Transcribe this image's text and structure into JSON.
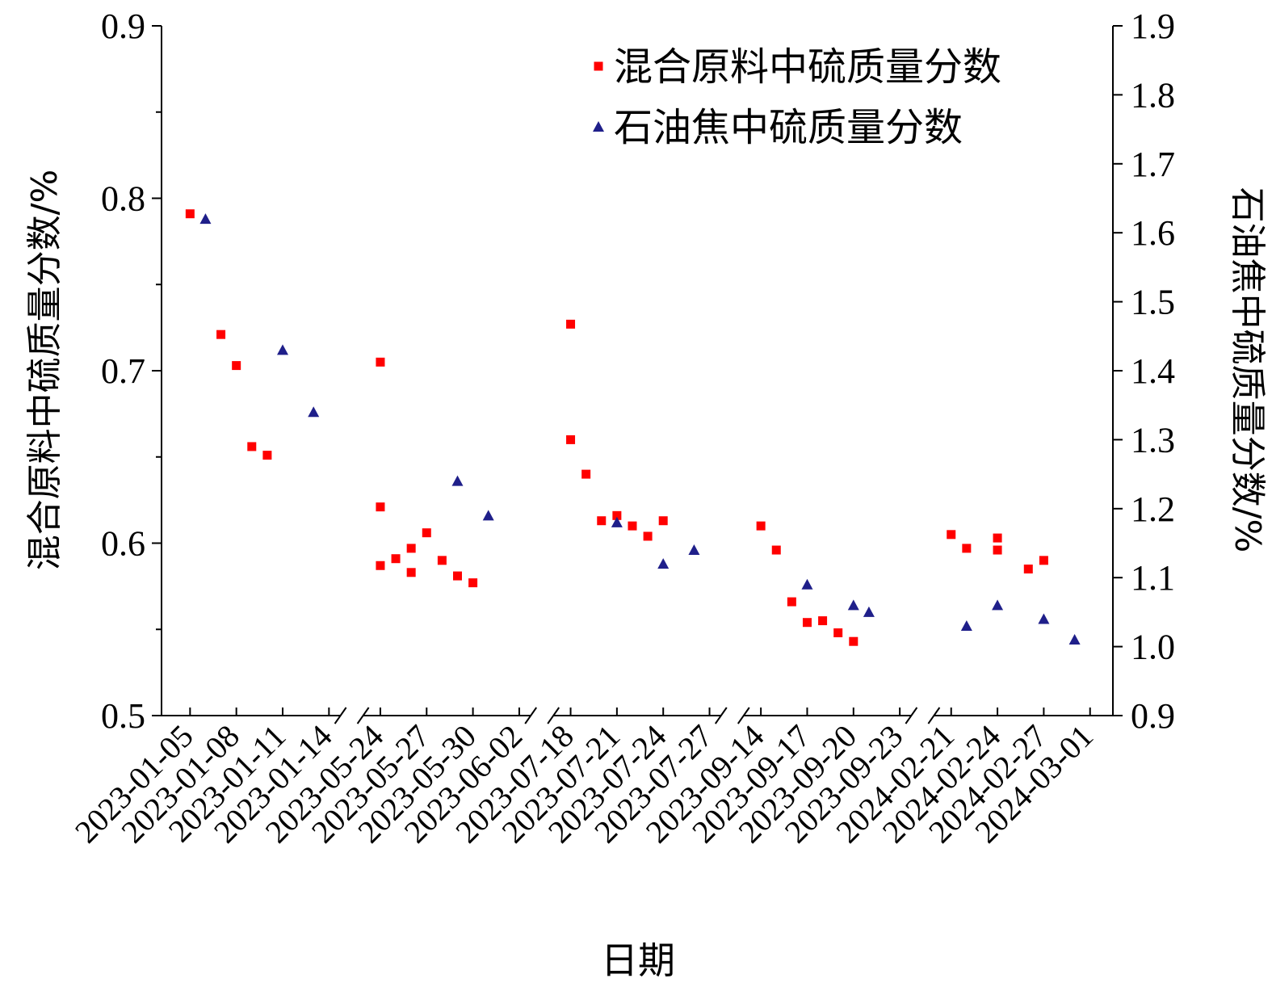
{
  "chart_data": {
    "type": "scatter",
    "title": "",
    "xlabel": "日期",
    "ylabel_left": "混合原料中硫质量分数/%",
    "ylabel_right": "石油焦中硫质量分数/%",
    "ylim_left": [
      0.5,
      0.9
    ],
    "ylim_right": [
      0.9,
      1.9
    ],
    "yticks_left": [
      "0.5",
      "0.6",
      "0.7",
      "0.8",
      "0.9"
    ],
    "yticks_right": [
      "0.9",
      "1.0",
      "1.1",
      "1.2",
      "1.3",
      "1.4",
      "1.5",
      "1.6",
      "1.7",
      "1.8",
      "1.9"
    ],
    "x_segments": [
      {
        "start": "2023-01-05",
        "end": "2023-01-14",
        "ticks": [
          "2023-01-05",
          "2023-01-08",
          "2023-01-11",
          "2023-01-14"
        ]
      },
      {
        "start": "2023-05-24",
        "end": "2023-06-02",
        "ticks": [
          "2023-05-24",
          "2023-05-27",
          "2023-05-30",
          "2023-06-02"
        ]
      },
      {
        "start": "2023-07-18",
        "end": "2023-07-27",
        "ticks": [
          "2023-07-18",
          "2023-07-21",
          "2023-07-24",
          "2023-07-27"
        ]
      },
      {
        "start": "2023-09-14",
        "end": "2023-09-23",
        "ticks": [
          "2023-09-14",
          "2023-09-17",
          "2023-09-20",
          "2023-09-23"
        ]
      },
      {
        "start": "2024-02-21",
        "end": "2024-03-01",
        "ticks": [
          "2024-02-21",
          "2024-02-24",
          "2024-02-27",
          "2024-03-01"
        ]
      }
    ],
    "axis_breaks": true,
    "legend_position": "top-right",
    "series": [
      {
        "name": "混合原料中硫质量分数",
        "axis": "left",
        "marker": "square",
        "color": "#ff0000",
        "points": [
          {
            "x": "2023-01-05",
            "y": 0.791
          },
          {
            "x": "2023-01-07",
            "y": 0.721
          },
          {
            "x": "2023-01-08",
            "y": 0.703
          },
          {
            "x": "2023-01-09",
            "y": 0.656
          },
          {
            "x": "2023-01-10",
            "y": 0.651
          },
          {
            "x": "2023-05-24",
            "y": 0.705
          },
          {
            "x": "2023-05-24",
            "y": 0.621
          },
          {
            "x": "2023-05-24",
            "y": 0.587
          },
          {
            "x": "2023-05-25",
            "y": 0.591
          },
          {
            "x": "2023-05-26",
            "y": 0.597
          },
          {
            "x": "2023-05-26",
            "y": 0.583
          },
          {
            "x": "2023-05-27",
            "y": 0.606
          },
          {
            "x": "2023-05-28",
            "y": 0.59
          },
          {
            "x": "2023-05-29",
            "y": 0.581
          },
          {
            "x": "2023-05-30",
            "y": 0.577
          },
          {
            "x": "2023-07-18",
            "y": 0.727
          },
          {
            "x": "2023-07-18",
            "y": 0.66
          },
          {
            "x": "2023-07-19",
            "y": 0.64
          },
          {
            "x": "2023-07-20",
            "y": 0.613
          },
          {
            "x": "2023-07-21",
            "y": 0.616
          },
          {
            "x": "2023-07-22",
            "y": 0.61
          },
          {
            "x": "2023-07-23",
            "y": 0.604
          },
          {
            "x": "2023-07-24",
            "y": 0.613
          },
          {
            "x": "2023-09-14",
            "y": 0.61
          },
          {
            "x": "2023-09-15",
            "y": 0.596
          },
          {
            "x": "2023-09-16",
            "y": 0.566
          },
          {
            "x": "2023-09-17",
            "y": 0.554
          },
          {
            "x": "2023-09-18",
            "y": 0.555
          },
          {
            "x": "2023-09-19",
            "y": 0.548
          },
          {
            "x": "2023-09-20",
            "y": 0.543
          },
          {
            "x": "2024-02-21",
            "y": 0.605
          },
          {
            "x": "2024-02-22",
            "y": 0.597
          },
          {
            "x": "2024-02-24",
            "y": 0.603
          },
          {
            "x": "2024-02-24",
            "y": 0.596
          },
          {
            "x": "2024-02-26",
            "y": 0.585
          },
          {
            "x": "2024-02-27",
            "y": 0.59
          }
        ]
      },
      {
        "name": "石油焦中硫质量分数",
        "axis": "right",
        "marker": "triangle",
        "color": "#1f1f8a",
        "points": [
          {
            "x": "2023-01-06",
            "y": 1.62
          },
          {
            "x": "2023-01-11",
            "y": 1.43
          },
          {
            "x": "2023-01-13",
            "y": 1.34
          },
          {
            "x": "2023-05-29",
            "y": 1.24
          },
          {
            "x": "2023-05-31",
            "y": 1.19
          },
          {
            "x": "2023-07-21",
            "y": 1.18
          },
          {
            "x": "2023-07-24",
            "y": 1.12
          },
          {
            "x": "2023-07-26",
            "y": 1.14
          },
          {
            "x": "2023-09-17",
            "y": 1.09
          },
          {
            "x": "2023-09-20",
            "y": 1.06
          },
          {
            "x": "2023-09-21",
            "y": 1.05
          },
          {
            "x": "2024-02-22",
            "y": 1.03
          },
          {
            "x": "2024-02-24",
            "y": 1.06
          },
          {
            "x": "2024-02-27",
            "y": 1.04
          },
          {
            "x": "2024-02-29",
            "y": 1.01
          }
        ]
      }
    ]
  }
}
